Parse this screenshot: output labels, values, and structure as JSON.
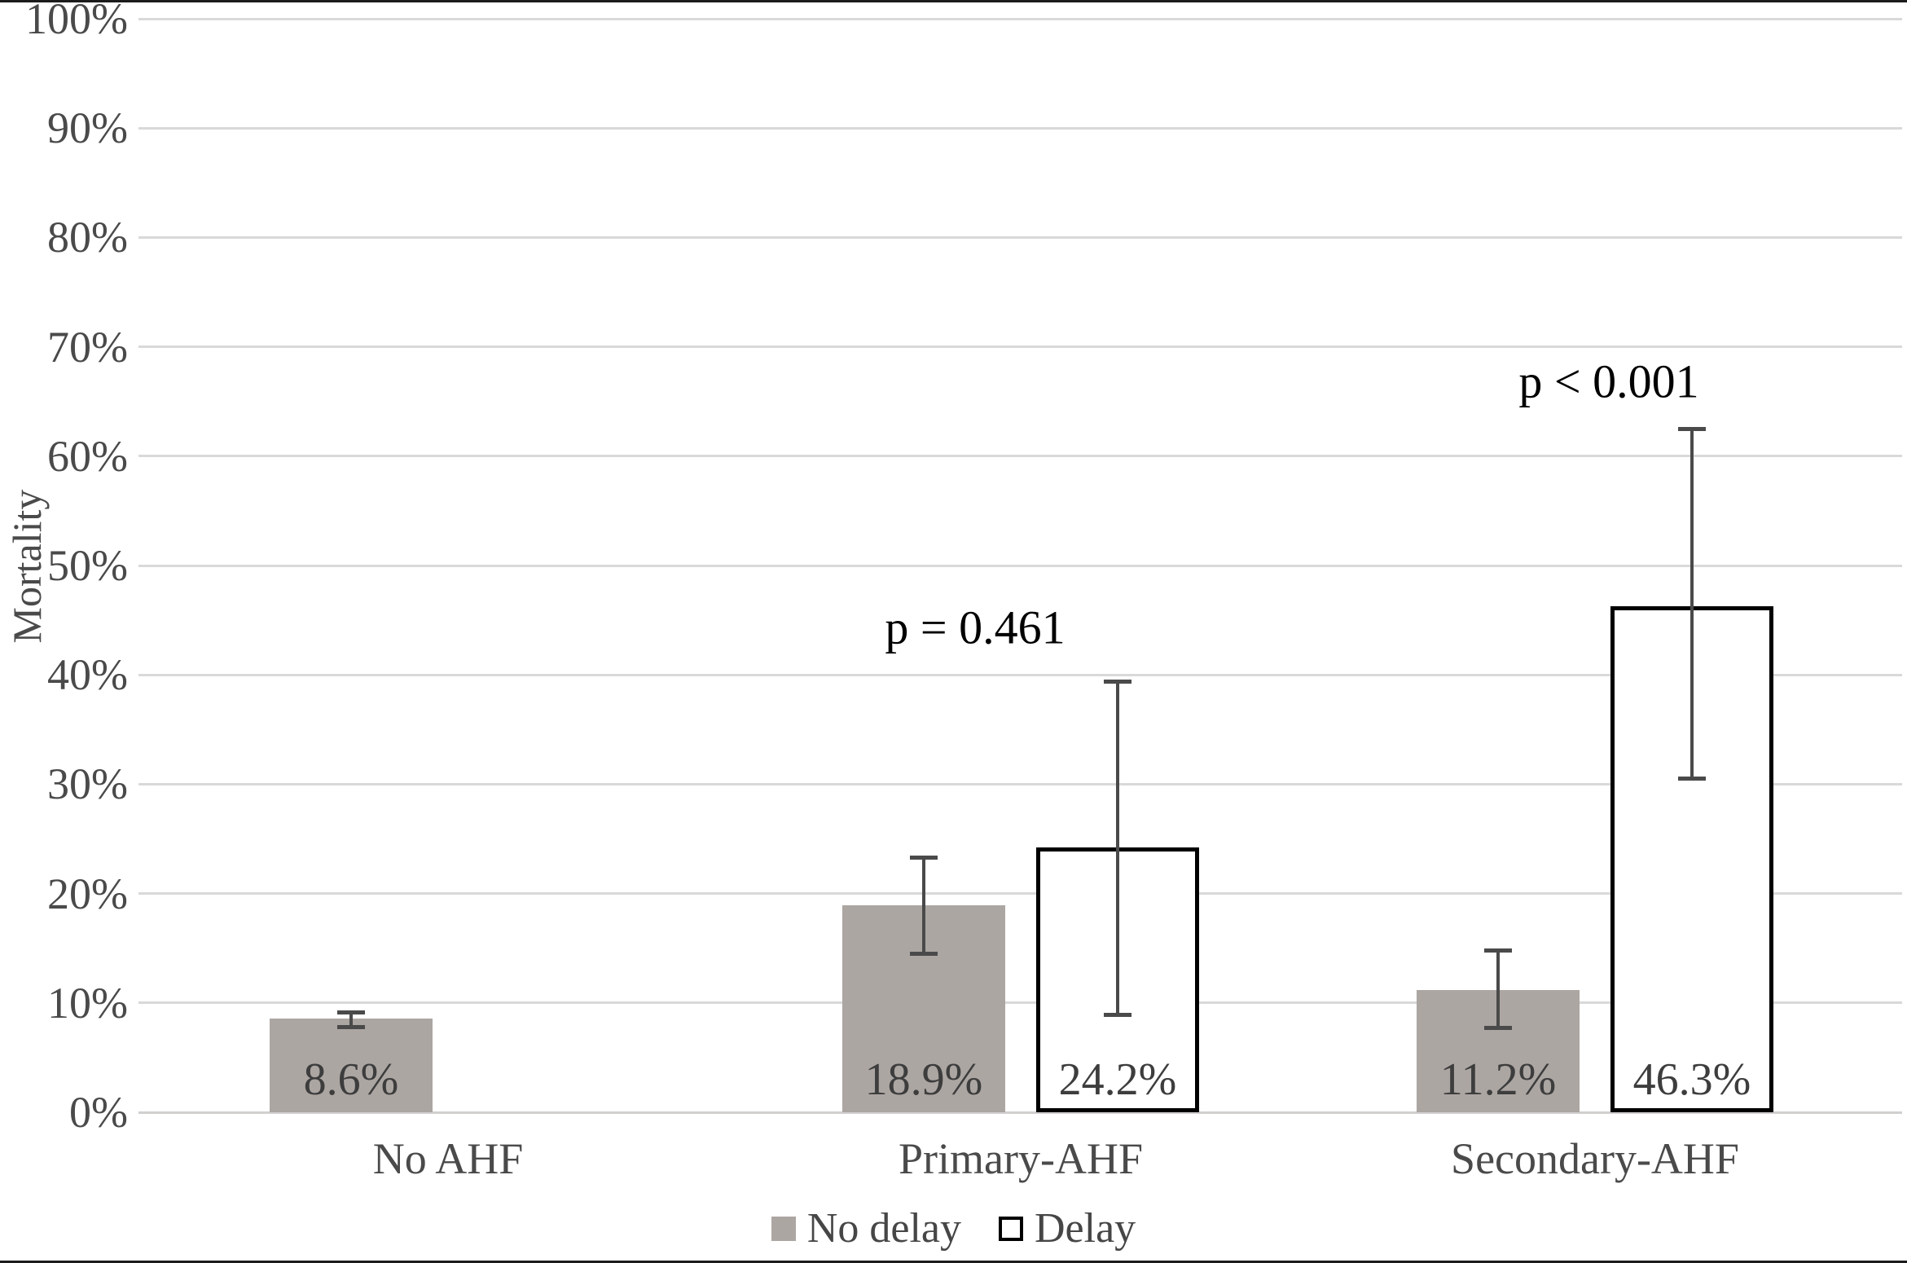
{
  "figure": {
    "ylabel": "Mortality"
  },
  "chart_data": {
    "type": "bar",
    "title": "",
    "xlabel": "",
    "ylabel": "Mortality",
    "categories": [
      "No AHF",
      "Primary-AHF",
      "Secondary-AHF"
    ],
    "series": [
      {
        "name": "No delay",
        "values": [
          8.6,
          18.9,
          11.2
        ],
        "data_labels": [
          "8.6%",
          "18.9%",
          "11.2%"
        ],
        "error_low": [
          7.6,
          14.3,
          7.5
        ],
        "error_high": [
          9.3,
          23.5,
          15.0
        ],
        "fill": "#aca6a3",
        "border": "none"
      },
      {
        "name": "Delay",
        "values": [
          null,
          24.2,
          46.3
        ],
        "data_labels": [
          null,
          "24.2%",
          "46.3%"
        ],
        "error_low": [
          null,
          8.7,
          30.3
        ],
        "error_high": [
          null,
          39.6,
          62.7
        ],
        "fill": "#ffffff",
        "border": "#000000"
      }
    ],
    "annotations": [
      {
        "text": "p = 0.461",
        "category": "Primary-AHF"
      },
      {
        "text": "p < 0.001",
        "category": "Secondary-AHF"
      }
    ],
    "y_axis": {
      "min": 0,
      "max": 100,
      "step": 10,
      "tick_labels": [
        "0%",
        "10%",
        "20%",
        "30%",
        "40%",
        "50%",
        "60%",
        "70%",
        "80%",
        "90%",
        "100%"
      ]
    },
    "grid": true,
    "legend_position": "bottom"
  },
  "colors": {
    "bar_gray": "#aca6a3",
    "bar_white": "#ffffff",
    "bar_border": "#000000",
    "gridline": "#d9d9d9",
    "error_bar": "#4a4a4a",
    "axis_text": "#4a4a4a",
    "data_label_text": "#3d3d3d",
    "p_value_text": "#000000"
  }
}
